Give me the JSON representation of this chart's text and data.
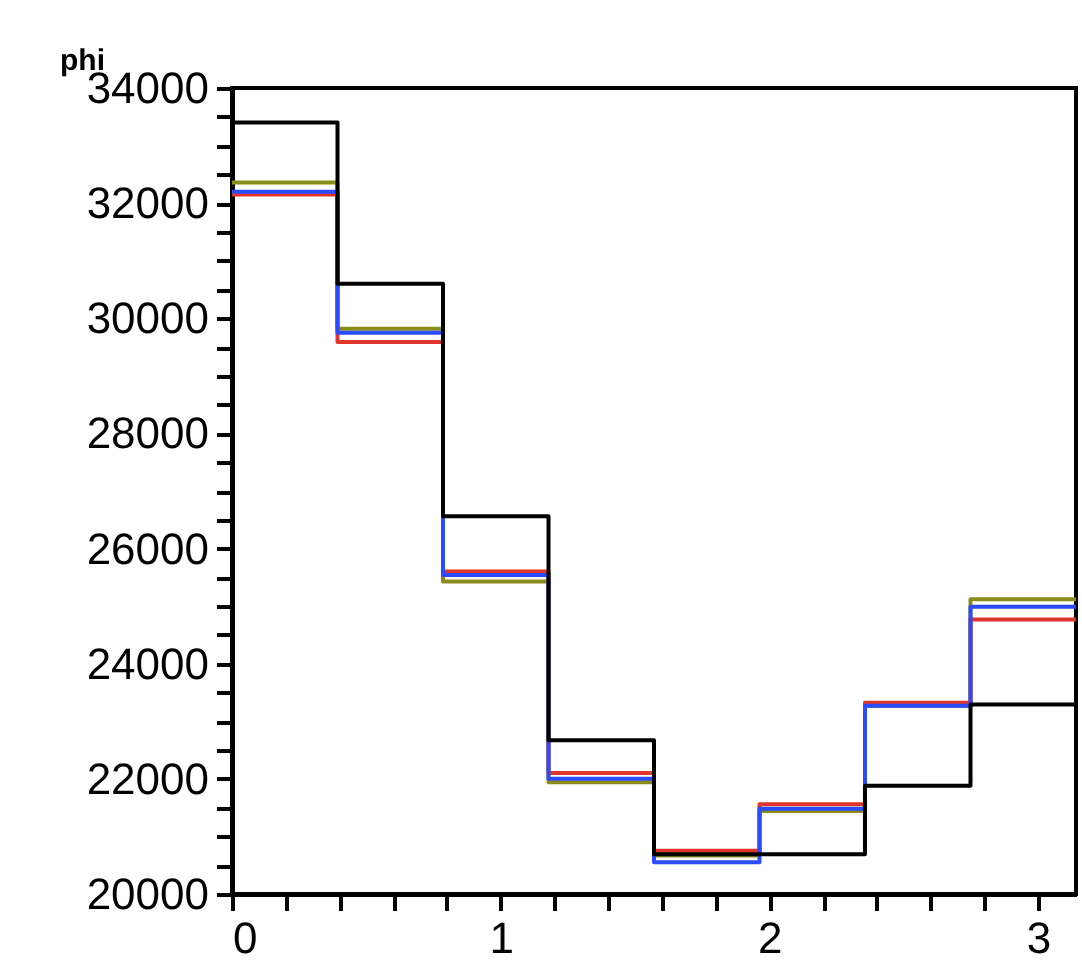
{
  "chart_data": {
    "type": "histogram",
    "title": "phi",
    "bins": [
      0,
      0.3927,
      0.7854,
      1.1781,
      1.5708,
      1.9635,
      2.3562,
      2.7489,
      3.1416
    ],
    "series": [
      {
        "color": "#8b8b1a",
        "values": [
          32360,
          29820,
          25430,
          21940,
          20670,
          21440,
          23270,
          25120
        ]
      },
      {
        "color": "#e0352b",
        "values": [
          32150,
          29590,
          25600,
          22100,
          20750,
          21560,
          23320,
          24770
        ]
      },
      {
        "color": "#2a4bff",
        "values": [
          32200,
          29750,
          25540,
          22000,
          20550,
          21480,
          23270,
          24990
        ]
      },
      {
        "color": "#000000",
        "values": [
          33400,
          30600,
          26560,
          22670,
          20690,
          20690,
          21880,
          23290
        ]
      }
    ],
    "xlim": [
      0,
      3.1416
    ],
    "xticks": [
      0,
      {
        "value": 0.2,
        "label": null
      },
      {
        "value": 0.4,
        "label": null
      },
      {
        "value": 0.6,
        "label": null
      },
      {
        "value": 0.8,
        "label": null
      },
      1,
      {
        "value": 1.2,
        "label": null
      },
      {
        "value": 1.4,
        "label": null
      },
      {
        "value": 1.6,
        "label": null
      },
      {
        "value": 1.8,
        "label": null
      },
      2,
      {
        "value": 2.2,
        "label": null
      },
      {
        "value": 2.4,
        "label": null
      },
      {
        "value": 2.6,
        "label": null
      },
      {
        "value": 2.8,
        "label": null
      },
      3
    ],
    "ylim": [
      20000,
      34000
    ],
    "yticks": [
      20000,
      {
        "value": 20500,
        "label": null
      },
      {
        "value": 21000,
        "label": null
      },
      {
        "value": 21500,
        "label": null
      },
      22000,
      {
        "value": 22500,
        "label": null
      },
      {
        "value": 23000,
        "label": null
      },
      {
        "value": 23500,
        "label": null
      },
      24000,
      {
        "value": 24500,
        "label": null
      },
      {
        "value": 25000,
        "label": null
      },
      {
        "value": 25500,
        "label": null
      },
      26000,
      {
        "value": 26500,
        "label": null
      },
      {
        "value": 27000,
        "label": null
      },
      {
        "value": 27500,
        "label": null
      },
      28000,
      {
        "value": 28500,
        "label": null
      },
      {
        "value": 29000,
        "label": null
      },
      {
        "value": 29500,
        "label": null
      },
      30000,
      {
        "value": 30500,
        "label": null
      },
      {
        "value": 31000,
        "label": null
      },
      {
        "value": 31500,
        "label": null
      },
      32000,
      {
        "value": 32500,
        "label": null
      },
      {
        "value": 33000,
        "label": null
      },
      {
        "value": 33500,
        "label": null
      },
      34000
    ],
    "grid": false,
    "legend": false
  }
}
